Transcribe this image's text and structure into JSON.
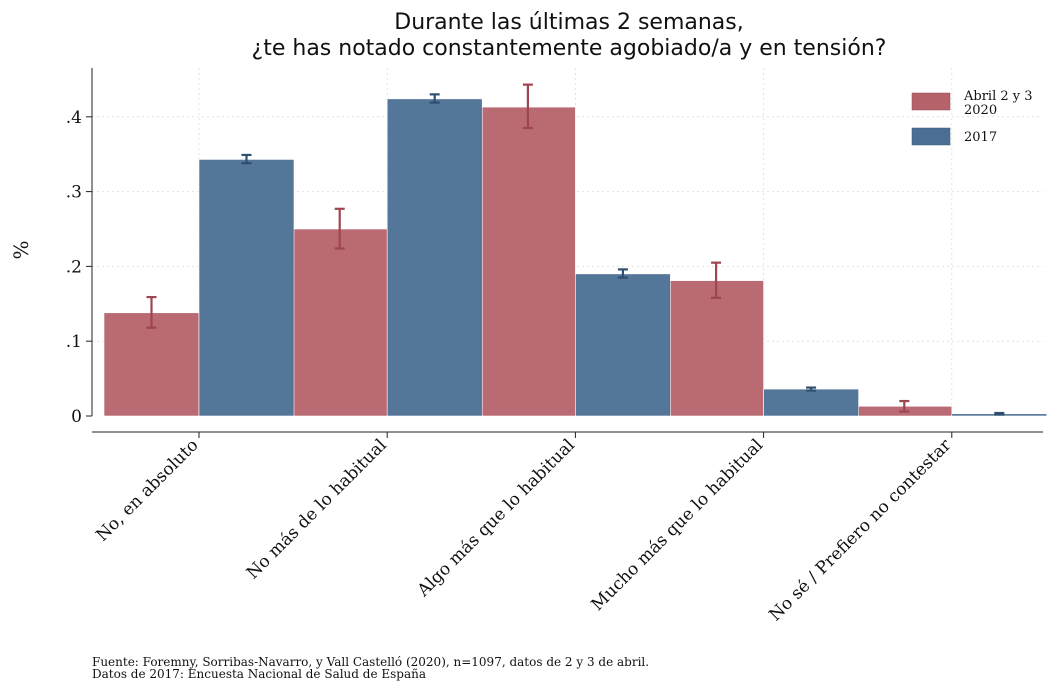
{
  "chart_data": {
    "type": "bar",
    "title_lines": [
      "Durante las últimas 2 semanas,",
      "¿te has notado constantemente agobiado/a y en tensión?"
    ],
    "ylabel": "%",
    "xlabel": "",
    "ylim": [
      0,
      0.44
    ],
    "yticks": [
      0,
      0.1,
      0.2,
      0.3,
      0.4
    ],
    "ytick_labels": [
      "0",
      ".1",
      ".2",
      ".3",
      ".4"
    ],
    "grid": true,
    "legend_position": "top-right",
    "categories": [
      "No, en absoluto",
      "No más de lo habitual",
      "Algo más que lo habitual",
      "Mucho más que lo habitual",
      "No sé / Prefiero no contestar"
    ],
    "series": [
      {
        "name_lines": [
          "Abril 2 y 3",
          "2020"
        ],
        "color": "#b5626b",
        "values": [
          0.138,
          0.25,
          0.413,
          0.181,
          0.013
        ],
        "err_low": [
          0.118,
          0.224,
          0.385,
          0.158,
          0.006
        ],
        "err_high": [
          0.159,
          0.277,
          0.443,
          0.205,
          0.02
        ]
      },
      {
        "name_lines": [
          "2017"
        ],
        "color": "#4b6f94",
        "values": [
          0.343,
          0.424,
          0.19,
          0.036,
          0.003
        ],
        "err_low": [
          0.338,
          0.419,
          0.185,
          0.034,
          0.002
        ],
        "err_high": [
          0.349,
          0.43,
          0.196,
          0.038,
          0.004
        ]
      }
    ]
  },
  "source": {
    "line1": "Fuente: Foremny, Sorribas-Navarro, y Vall Castelló (2020), n=1097, datos de 2 y 3 de abril.",
    "line2": "Datos de 2017: Encuesta Nacional de Salud de España"
  }
}
